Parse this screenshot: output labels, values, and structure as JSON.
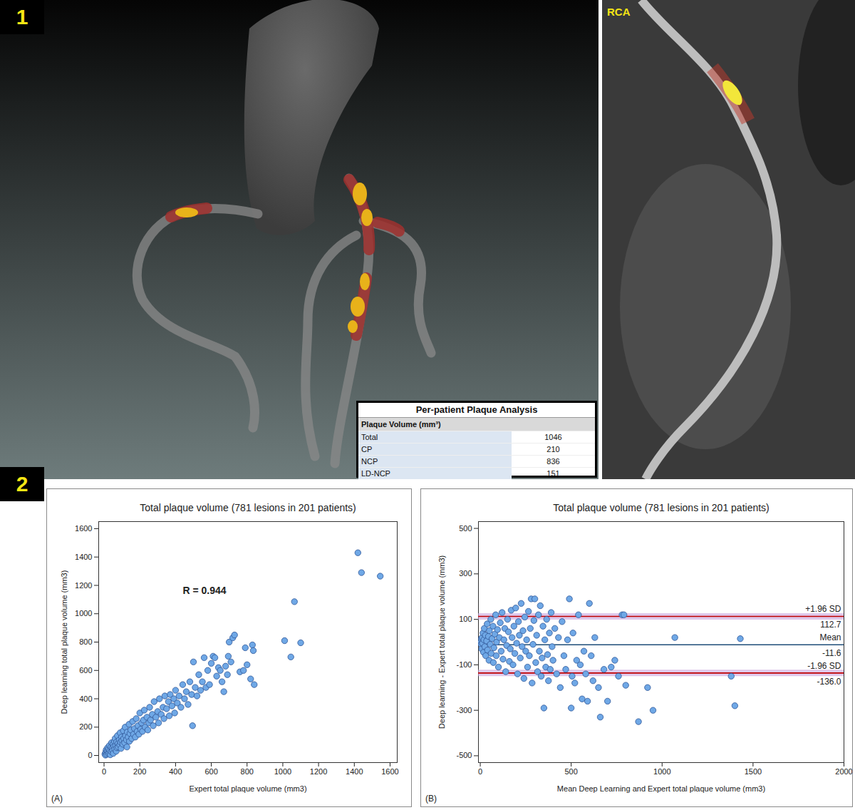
{
  "figure": {
    "panel_labels": [
      "1",
      "2"
    ],
    "image_label": "RCA",
    "table": {
      "title": "Per-patient Plaque Analysis",
      "header": "Plaque Volume (mm³)",
      "rows": [
        [
          "Total",
          1046
        ],
        [
          "CP",
          210
        ],
        [
          "NCP",
          836
        ],
        [
          "LD-NCP",
          151
        ]
      ]
    }
  },
  "chart_data": [
    {
      "type": "scatter",
      "title": "Total plaque volume (781 lesions in 201 patients)",
      "panel_label": "(A)",
      "x_label": "Expert total plaque volume (mm3)",
      "y_label": "Deep learning total plaque volume (mm3)",
      "annotations": [
        "R = 0.944"
      ],
      "color": "#6fa8e6",
      "grid": false,
      "xlim": [
        -30,
        1640
      ],
      "xticks": [
        0,
        200,
        400,
        600,
        800,
        1000,
        1200,
        1400,
        1600
      ],
      "ylim": [
        -50,
        1650
      ],
      "yticks": [
        0,
        200,
        400,
        600,
        800,
        1000,
        1200,
        1400,
        1600
      ],
      "x": [
        5,
        8,
        10,
        12,
        15,
        18,
        20,
        22,
        25,
        28,
        30,
        32,
        35,
        38,
        40,
        42,
        45,
        48,
        50,
        52,
        55,
        58,
        60,
        62,
        65,
        68,
        70,
        72,
        75,
        78,
        80,
        85,
        88,
        90,
        92,
        95,
        98,
        100,
        105,
        108,
        110,
        115,
        118,
        120,
        125,
        128,
        130,
        135,
        140,
        142,
        145,
        150,
        155,
        160,
        165,
        170,
        175,
        180,
        185,
        190,
        195,
        200,
        205,
        210,
        215,
        220,
        225,
        230,
        240,
        245,
        250,
        255,
        260,
        270,
        275,
        280,
        290,
        300,
        305,
        310,
        320,
        330,
        335,
        340,
        350,
        360,
        365,
        370,
        380,
        390,
        395,
        400,
        410,
        420,
        430,
        440,
        450,
        460,
        470,
        480,
        490,
        495,
        500,
        510,
        520,
        530,
        540,
        550,
        560,
        570,
        580,
        590,
        600,
        610,
        620,
        630,
        640,
        650,
        660,
        670,
        680,
        690,
        695,
        700,
        710,
        720,
        730,
        760,
        780,
        790,
        800,
        820,
        830,
        835,
        840,
        1010,
        1045,
        1065,
        1100,
        1420,
        1440,
        1545
      ],
      "values": [
        10,
        3,
        25,
        40,
        8,
        30,
        55,
        15,
        45,
        20,
        70,
        35,
        5,
        60,
        28,
        90,
        50,
        35,
        80,
        15,
        65,
        100,
        45,
        120,
        70,
        30,
        95,
        55,
        140,
        85,
        60,
        110,
        75,
        160,
        95,
        50,
        130,
        105,
        80,
        175,
        120,
        90,
        200,
        140,
        110,
        60,
        165,
        130,
        220,
        100,
        155,
        180,
        120,
        240,
        150,
        190,
        130,
        260,
        170,
        210,
        150,
        300,
        185,
        230,
        170,
        250,
        320,
        200,
        270,
        180,
        230,
        340,
        250,
        290,
        210,
        380,
        270,
        310,
        230,
        400,
        290,
        340,
        260,
        420,
        330,
        380,
        280,
        430,
        350,
        400,
        300,
        460,
        370,
        420,
        340,
        500,
        400,
        450,
        360,
        520,
        430,
        210,
        660,
        480,
        420,
        570,
        460,
        520,
        690,
        480,
        600,
        500,
        650,
        700,
        690,
        560,
        620,
        600,
        520,
        450,
        630,
        570,
        700,
        800,
        660,
        830,
        850,
        590,
        600,
        760,
        640,
        540,
        780,
        740,
        500,
        810,
        695,
        1085,
        795,
        1430,
        1290,
        1265
      ]
    },
    {
      "type": "scatter",
      "title": "Total plaque volume (781 lesions in 201 patients)",
      "panel_label": "(B)",
      "x_label": "Mean Deep Learning and Expert total plaque volume (mm3)",
      "y_label": "Deep learning - Expert total plaque volume (mm3)",
      "color": "#6fa8e6",
      "grid": false,
      "xlim": [
        -10,
        2000
      ],
      "xticks": [
        0,
        500,
        1000,
        1500,
        2000
      ],
      "ylim": [
        -530,
        530
      ],
      "yticks": [
        -500,
        -300,
        -100,
        100,
        300,
        500
      ],
      "reference_lines": [
        {
          "name": "+1.96 SD",
          "value": 112.7,
          "color": "#c00000",
          "line_style": "dotted"
        },
        {
          "name": "Mean",
          "value": -11.6,
          "color": "#1f4e79",
          "line_style": "solid"
        },
        {
          "name": "-1.96 SD",
          "value": -136.0,
          "value_label": "-136.0",
          "color": "#c00000",
          "line_style": "dotted"
        }
      ],
      "x": [
        3,
        5,
        6,
        8,
        10,
        12,
        15,
        18,
        20,
        22,
        25,
        28,
        30,
        35,
        38,
        40,
        45,
        48,
        50,
        55,
        58,
        60,
        65,
        70,
        72,
        75,
        80,
        85,
        88,
        90,
        95,
        100,
        105,
        110,
        115,
        120,
        125,
        130,
        135,
        140,
        145,
        150,
        155,
        160,
        165,
        170,
        175,
        180,
        185,
        190,
        195,
        200,
        205,
        210,
        215,
        220,
        225,
        230,
        235,
        240,
        245,
        250,
        255,
        260,
        265,
        270,
        275,
        280,
        285,
        290,
        295,
        300,
        305,
        310,
        315,
        320,
        325,
        330,
        335,
        340,
        345,
        350,
        355,
        360,
        365,
        370,
        375,
        380,
        385,
        390,
        395,
        400,
        410,
        420,
        430,
        440,
        450,
        460,
        470,
        480,
        490,
        500,
        505,
        510,
        520,
        530,
        540,
        550,
        560,
        570,
        580,
        590,
        600,
        610,
        620,
        630,
        650,
        660,
        680,
        700,
        720,
        740,
        760,
        780,
        790,
        800,
        870,
        920,
        950,
        1070,
        1380,
        1400,
        1430
      ],
      "values": [
        0,
        -10,
        15,
        -30,
        20,
        -5,
        40,
        -45,
        10,
        60,
        -20,
        30,
        -60,
        5,
        80,
        -35,
        25,
        -80,
        50,
        -10,
        100,
        -50,
        15,
        70,
        -90,
        -25,
        35,
        120,
        -60,
        0,
        55,
        -110,
        20,
        85,
        -40,
        130,
        -75,
        10,
        60,
        -130,
        -15,
        100,
        45,
        -85,
        -30,
        140,
        20,
        -100,
        70,
        -50,
        150,
        -5,
        -140,
        90,
        30,
        -70,
        170,
        -20,
        50,
        -160,
        110,
        -40,
        10,
        -110,
        135,
        -60,
        60,
        190,
        -180,
        -10,
        95,
        190,
        -90,
        30,
        -130,
        120,
        -40,
        160,
        -150,
        -70,
        70,
        -290,
        10,
        -110,
        100,
        -55,
        -170,
        40,
        -120,
        130,
        -20,
        -80,
        60,
        -140,
        20,
        -200,
        90,
        -60,
        -120,
        10,
        190,
        -290,
        -150,
        40,
        -180,
        -80,
        120,
        -100,
        -250,
        -40,
        -140,
        -260,
        170,
        -60,
        -170,
        20,
        -200,
        -330,
        -120,
        -260,
        -110,
        -80,
        -150,
        120,
        120,
        -190,
        -350,
        -200,
        -300,
        20,
        -150,
        -280,
        15
      ]
    }
  ]
}
